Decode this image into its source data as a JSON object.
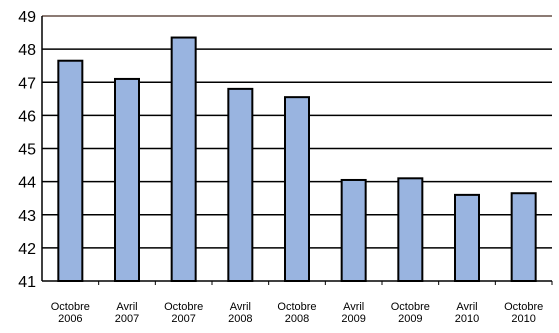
{
  "chart_data": {
    "type": "bar",
    "title": "",
    "xlabel": "",
    "ylabel": "",
    "ylim": [
      41,
      49
    ],
    "yticks": [
      41,
      42,
      43,
      44,
      45,
      46,
      47,
      48,
      49
    ],
    "grid": true,
    "legend": "none",
    "categories": [
      [
        "Octobre",
        "2006"
      ],
      [
        "Avril",
        "2007"
      ],
      [
        "Octobre",
        "2007"
      ],
      [
        "Avril",
        "2008"
      ],
      [
        "Octobre",
        "2008"
      ],
      [
        "Avril",
        "2009"
      ],
      [
        "Octobre",
        "2009"
      ],
      [
        "Avril",
        "2010"
      ],
      [
        "Octobre",
        "2010"
      ]
    ],
    "series": [
      {
        "values": [
          47.65,
          47.1,
          48.35,
          46.8,
          46.55,
          44.05,
          44.1,
          43.6,
          43.65
        ],
        "color": "#99b4e0"
      }
    ],
    "colors": {
      "bar_fill": "#99b4e0",
      "bar_stroke": "#000000",
      "grid": "#000000",
      "top_line": "#8c7b74"
    }
  }
}
